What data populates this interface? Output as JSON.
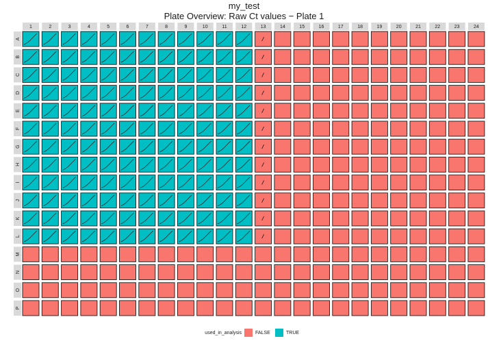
{
  "chart_data": {
    "type": "heatmap",
    "title": "my_test",
    "subtitle": "Plate Overview: Raw Ct values − Plate 1",
    "columns": [
      "1",
      "2",
      "3",
      "4",
      "5",
      "6",
      "7",
      "8",
      "9",
      "10",
      "11",
      "12",
      "13",
      "14",
      "15",
      "16",
      "17",
      "18",
      "19",
      "20",
      "21",
      "22",
      "23",
      "24"
    ],
    "rows": [
      "A",
      "B",
      "C",
      "D",
      "E",
      "F",
      "G",
      "H",
      "I",
      "J",
      "K",
      "L",
      "M",
      "N",
      "O",
      "P"
    ],
    "fill_variable": "used_in_analysis",
    "used_rows": [
      "A",
      "B",
      "C",
      "D",
      "E",
      "F",
      "G",
      "H",
      "I",
      "J",
      "K",
      "L"
    ],
    "used_columns": [
      "1",
      "2",
      "3",
      "4",
      "5",
      "6",
      "7",
      "8",
      "9",
      "10",
      "11",
      "12"
    ],
    "curve_column": "13",
    "legend": {
      "title": "used_in_analysis",
      "position": "bottom",
      "items": [
        {
          "label": "FALSE",
          "color": "#F8766D"
        },
        {
          "label": "TRUE",
          "color": "#00BFC4"
        }
      ]
    },
    "colors": {
      "false_fill": "#F8766D",
      "true_fill": "#00BFC4",
      "strip_fill": "#D9D9D9",
      "curve": "#1a1a1a"
    }
  }
}
